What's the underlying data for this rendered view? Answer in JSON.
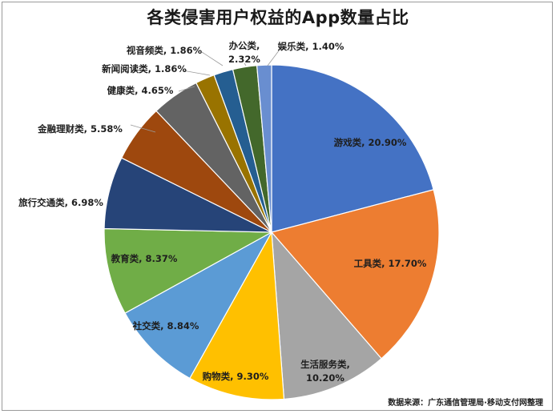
{
  "chart_data": {
    "type": "pie",
    "title": "各类侵害用户权益的App数量占比",
    "categories": [
      "游戏类",
      "工具类",
      "生活服务类",
      "购物类",
      "社交类",
      "教育类",
      "旅行交通类",
      "金融理财类",
      "健康类",
      "新闻阅读类",
      "视音频类",
      "办公类",
      "娱乐类"
    ],
    "values": [
      20.9,
      17.7,
      10.2,
      9.3,
      8.84,
      8.37,
      6.98,
      5.58,
      4.65,
      1.86,
      1.86,
      2.32,
      1.4
    ],
    "value_labels": [
      "20.90%",
      "17.70%",
      "10.20%",
      "9.30%",
      "8.84%",
      "8.37%",
      "6.98%",
      "5.58%",
      "4.65%",
      "1.86%",
      "1.86%",
      "2.32%",
      "1.40%"
    ],
    "colors": [
      "#4472C4",
      "#ED7D31",
      "#A5A5A5",
      "#FFC000",
      "#5B9BD5",
      "#70AD47",
      "#264478",
      "#9E480E",
      "#636363",
      "#997300",
      "#255E91",
      "#43682B",
      "#698ED0"
    ],
    "legend": "none",
    "source_note": "数据来源：广东通信管理局·移动支付网整理"
  }
}
